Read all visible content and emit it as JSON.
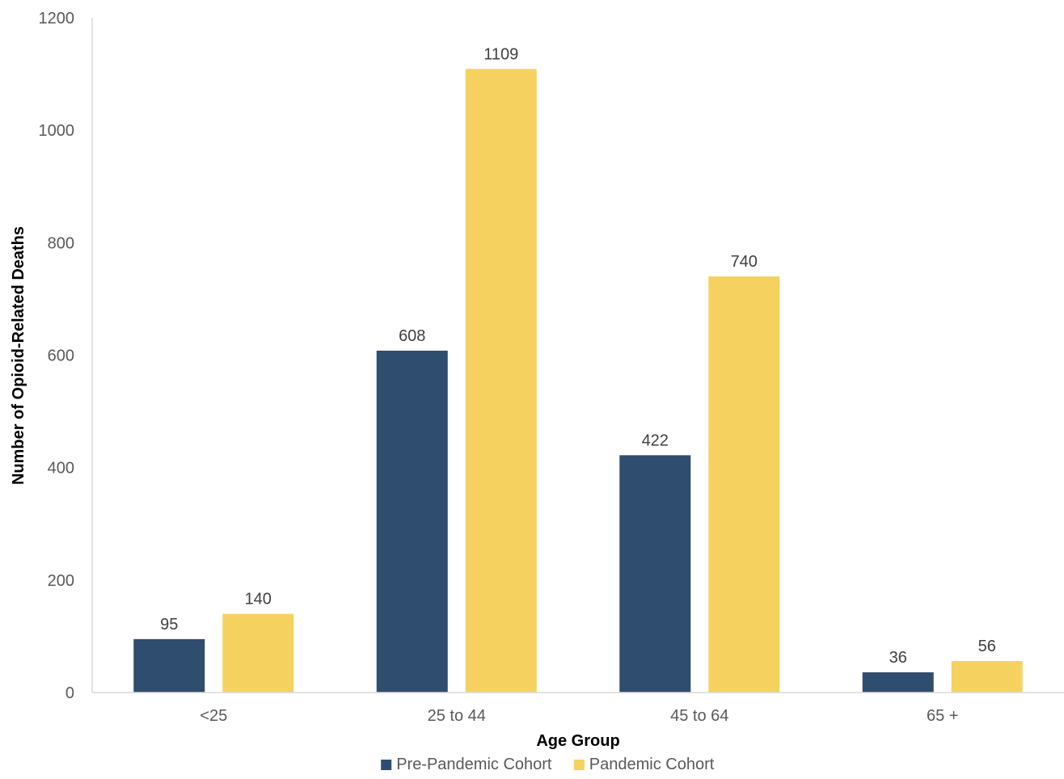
{
  "chart_data": {
    "type": "bar",
    "title": "",
    "xlabel": "Age Group",
    "ylabel": "Number of Opioid-Related Deaths",
    "categories": [
      "<25",
      "25 to 44",
      "45 to 64",
      "65 +"
    ],
    "series": [
      {
        "name": "Pre-Pandemic Cohort",
        "color": "#2e4d6f",
        "values": [
          95,
          608,
          422,
          36
        ]
      },
      {
        "name": "Pandemic Cohort",
        "color": "#f5d260",
        "values": [
          140,
          1109,
          740,
          56
        ]
      }
    ],
    "ylim": [
      0,
      1200
    ],
    "yticks": [
      0,
      200,
      400,
      600,
      800,
      1000,
      1200
    ],
    "grid": false,
    "legend": "bottom"
  }
}
